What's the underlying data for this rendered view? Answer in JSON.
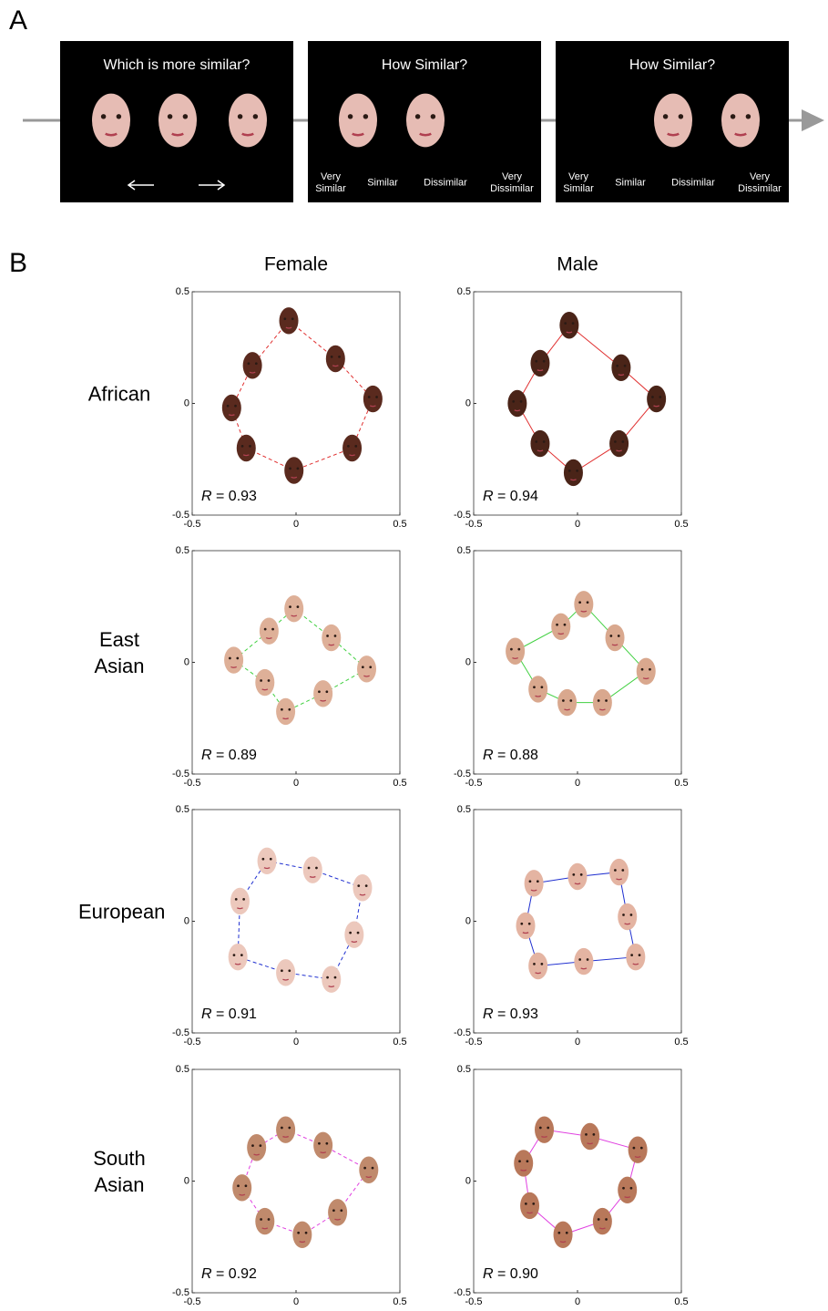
{
  "panel_a": {
    "label": "A",
    "screens": [
      {
        "title": "Which is more similar?"
      },
      {
        "title": "How Similar?",
        "scale": [
          "Very Similar",
          "Similar",
          "Dissimilar",
          "Very Dissimilar"
        ]
      },
      {
        "title": "How Similar?",
        "scale": [
          "Very Similar",
          "Similar",
          "Dissimilar",
          "Very Dissimilar"
        ]
      }
    ]
  },
  "panel_b": {
    "label": "B",
    "columns": [
      "Female",
      "Male"
    ],
    "rows": [
      "African",
      "East Asian",
      "European",
      "South Asian"
    ]
  },
  "chart_data": [
    {
      "type": "scatter",
      "x": [
        -0.035,
        0.19,
        0.37,
        0.27,
        -0.01,
        -0.24,
        -0.31,
        -0.21
      ],
      "y": [
        0.37,
        0.2,
        0.02,
        -0.2,
        -0.3,
        -0.2,
        -0.02,
        0.17
      ],
      "annotation": "R = 0.93",
      "xlim": [
        -0.5,
        0.5
      ],
      "ylim": [
        -0.5,
        0.5
      ],
      "xticks": [
        -0.5,
        0,
        0.5
      ],
      "yticks": [
        -0.5,
        0,
        0.5
      ],
      "color": "#e03030",
      "marker_color": "#5a2a1e",
      "line_style": "dashed",
      "closed": true
    },
    {
      "type": "scatter",
      "x": [
        -0.04,
        0.21,
        0.38,
        0.2,
        -0.02,
        -0.18,
        -0.29,
        -0.18
      ],
      "y": [
        0.35,
        0.16,
        0.02,
        -0.18,
        -0.31,
        -0.18,
        0.0,
        0.18
      ],
      "annotation": "R = 0.94",
      "xlim": [
        -0.5,
        0.5
      ],
      "ylim": [
        -0.5,
        0.5
      ],
      "xticks": [
        -0.5,
        0,
        0.5
      ],
      "yticks": [
        -0.5,
        0,
        0.5
      ],
      "color": "#e03030",
      "marker_color": "#4a2418",
      "line_style": "solid",
      "closed": true
    },
    {
      "type": "scatter",
      "x": [
        -0.01,
        0.17,
        0.34,
        0.13,
        -0.05,
        -0.15,
        -0.3,
        -0.13
      ],
      "y": [
        0.24,
        0.11,
        -0.03,
        -0.14,
        -0.22,
        -0.09,
        0.01,
        0.14
      ],
      "annotation": "R = 0.89",
      "xlim": [
        -0.5,
        0.5
      ],
      "ylim": [
        -0.5,
        0.5
      ],
      "xticks": [
        -0.5,
        0,
        0.5
      ],
      "yticks": [
        -0.5,
        0,
        0.5
      ],
      "color": "#40d040",
      "marker_color": "#deb098",
      "line_style": "dashed",
      "closed": true
    },
    {
      "type": "scatter",
      "x": [
        0.03,
        0.18,
        0.33,
        0.12,
        -0.05,
        -0.19,
        -0.3,
        -0.08
      ],
      "y": [
        0.26,
        0.11,
        -0.04,
        -0.18,
        -0.18,
        -0.12,
        0.05,
        0.16
      ],
      "annotation": "R = 0.88",
      "xlim": [
        -0.5,
        0.5
      ],
      "ylim": [
        -0.5,
        0.5
      ],
      "xticks": [
        -0.5,
        0,
        0.5
      ],
      "yticks": [
        -0.5,
        0,
        0.5
      ],
      "color": "#40d040",
      "marker_color": "#d9a88e",
      "line_style": "solid",
      "closed": true
    },
    {
      "type": "scatter",
      "x": [
        -0.14,
        0.08,
        0.32,
        0.28,
        0.17,
        -0.05,
        -0.28,
        -0.27
      ],
      "y": [
        0.27,
        0.23,
        0.15,
        -0.06,
        -0.26,
        -0.23,
        -0.16,
        0.09
      ],
      "annotation": "R = 0.91",
      "xlim": [
        -0.5,
        0.5
      ],
      "ylim": [
        -0.5,
        0.5
      ],
      "xticks": [
        -0.5,
        0,
        0.5
      ],
      "yticks": [
        -0.5,
        0,
        0.5
      ],
      "color": "#2030d0",
      "marker_color": "#ecc8bc",
      "line_style": "dashed",
      "closed": true
    },
    {
      "type": "scatter",
      "x": [
        -0.21,
        0.0,
        0.2,
        0.24,
        0.28,
        0.03,
        -0.19,
        -0.25
      ],
      "y": [
        0.17,
        0.2,
        0.22,
        0.02,
        -0.16,
        -0.18,
        -0.2,
        -0.02
      ],
      "annotation": "R = 0.93",
      "xlim": [
        -0.5,
        0.5
      ],
      "ylim": [
        -0.5,
        0.5
      ],
      "xticks": [
        -0.5,
        0,
        0.5
      ],
      "yticks": [
        -0.5,
        0,
        0.5
      ],
      "color": "#2030d0",
      "marker_color": "#e4b4a2",
      "line_style": "solid",
      "closed": true
    },
    {
      "type": "scatter",
      "x": [
        -0.05,
        0.13,
        0.35,
        0.2,
        0.03,
        -0.15,
        -0.26,
        -0.19
      ],
      "y": [
        0.23,
        0.16,
        0.05,
        -0.14,
        -0.24,
        -0.18,
        -0.03,
        0.15
      ],
      "annotation": "R = 0.92",
      "xlim": [
        -0.5,
        0.5
      ],
      "ylim": [
        -0.5,
        0.5
      ],
      "xticks": [
        -0.5,
        0,
        0.5
      ],
      "yticks": [
        -0.5,
        0,
        0.5
      ],
      "color": "#e040e0",
      "marker_color": "#c08a6c",
      "line_style": "dashed",
      "closed": true
    },
    {
      "type": "scatter",
      "x": [
        -0.16,
        0.06,
        0.29,
        0.24,
        0.12,
        -0.07,
        -0.23,
        -0.26
      ],
      "y": [
        0.23,
        0.2,
        0.14,
        -0.04,
        -0.18,
        -0.24,
        -0.11,
        0.08
      ],
      "annotation": "R = 0.90",
      "xlim": [
        -0.5,
        0.5
      ],
      "ylim": [
        -0.5,
        0.5
      ],
      "xticks": [
        -0.5,
        0,
        0.5
      ],
      "yticks": [
        -0.5,
        0,
        0.5
      ],
      "color": "#e040e0",
      "marker_color": "#b8785a",
      "line_style": "solid",
      "closed": true
    }
  ]
}
